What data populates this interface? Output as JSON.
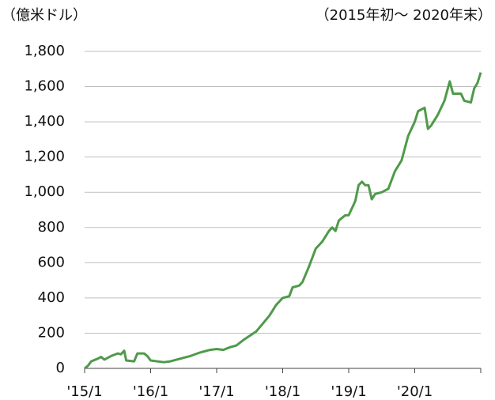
{
  "chart_data": {
    "type": "line",
    "unit_label": "（億米ドル）",
    "period_label": "（2015年初～ 2020年末）",
    "x": [
      2015.0,
      2015.05,
      2015.1,
      2015.2,
      2015.25,
      2015.3,
      2015.4,
      2015.5,
      2015.55,
      2015.6,
      2015.63,
      2015.75,
      2015.8,
      2015.9,
      2015.95,
      2016.0,
      2016.2,
      2016.3,
      2016.5,
      2016.6,
      2016.75,
      2016.9,
      2017.0,
      2017.1,
      2017.2,
      2017.3,
      2017.4,
      2017.5,
      2017.6,
      2017.7,
      2017.8,
      2017.9,
      2018.0,
      2018.1,
      2018.15,
      2018.25,
      2018.3,
      2018.4,
      2018.5,
      2018.6,
      2018.7,
      2018.75,
      2018.8,
      2018.85,
      2018.95,
      2019.0,
      2019.1,
      2019.15,
      2019.2,
      2019.25,
      2019.3,
      2019.35,
      2019.4,
      2019.5,
      2019.6,
      2019.7,
      2019.8,
      2019.9,
      2020.0,
      2020.05,
      2020.1,
      2020.15,
      2020.2,
      2020.25,
      2020.35,
      2020.45,
      2020.53,
      2020.58,
      2020.7,
      2020.75,
      2020.85,
      2020.9,
      2020.95,
      2021.0
    ],
    "series": [
      {
        "name": null,
        "color": "#4e9a4a",
        "values": [
          0,
          15,
          40,
          55,
          65,
          50,
          70,
          85,
          80,
          100,
          45,
          40,
          85,
          85,
          70,
          45,
          35,
          40,
          60,
          70,
          90,
          105,
          110,
          105,
          120,
          130,
          160,
          185,
          210,
          255,
          300,
          360,
          400,
          410,
          460,
          470,
          490,
          580,
          680,
          720,
          780,
          800,
          780,
          840,
          870,
          870,
          950,
          1040,
          1060,
          1040,
          1040,
          960,
          990,
          1000,
          1020,
          1120,
          1180,
          1320,
          1400,
          1460,
          1470,
          1480,
          1360,
          1380,
          1440,
          1520,
          1630,
          1560,
          1560,
          1520,
          1510,
          1590,
          1620,
          1680
        ]
      }
    ],
    "xlim": [
      2015,
      2021
    ],
    "xticks": [
      {
        "value": 2015,
        "label": "'15/1"
      },
      {
        "value": 2016,
        "label": "'16/1"
      },
      {
        "value": 2017,
        "label": "'17/1"
      },
      {
        "value": 2018,
        "label": "'18/1"
      },
      {
        "value": 2019,
        "label": "'19/1"
      },
      {
        "value": 2020,
        "label": "'20/1"
      }
    ],
    "ylim": [
      0,
      1800
    ],
    "yticks": [
      0,
      200,
      400,
      600,
      800,
      {
        "value": 1000,
        "label": "1,000"
      },
      {
        "value": 1200,
        "label": "1,200"
      },
      {
        "value": 1400,
        "label": "1,400"
      },
      {
        "value": 1600,
        "label": "1,600"
      },
      {
        "value": 1800,
        "label": "1,800"
      }
    ],
    "grid": true
  }
}
